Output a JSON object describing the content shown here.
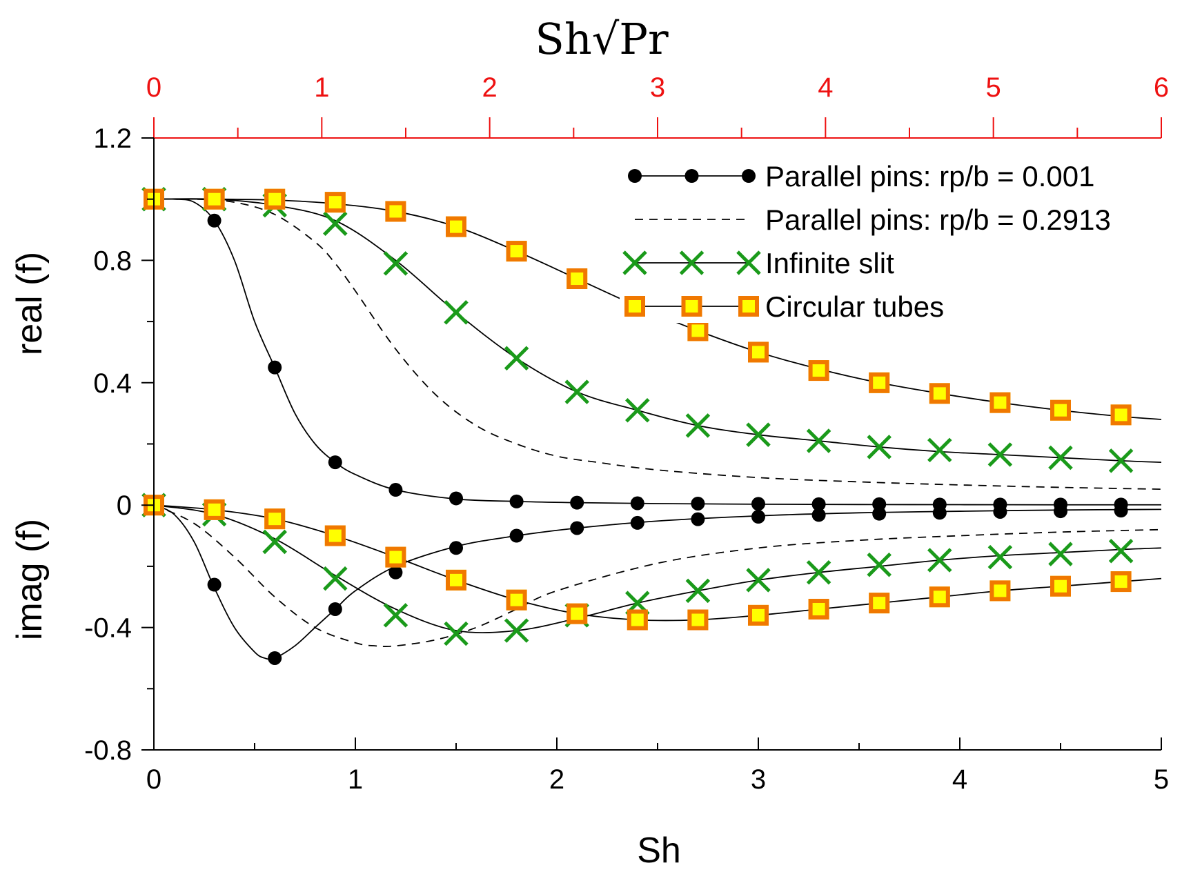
{
  "chart_data": {
    "type": "line",
    "x_axis": {
      "label": "Sh",
      "range": [
        0,
        5
      ],
      "ticks": [
        "0",
        "1",
        "2",
        "3",
        "4",
        "5"
      ]
    },
    "top_axis": {
      "label": "Sh√Pr",
      "range": [
        0,
        6
      ],
      "ticks": [
        "0",
        "1",
        "2",
        "3",
        "4",
        "5",
        "6"
      ],
      "color": "#ee1111"
    },
    "y_axis": {
      "range": [
        -0.8,
        1.2
      ],
      "ticks": [
        "-0.8",
        "-0.4",
        "0",
        "0.4",
        "0.8",
        "1.2"
      ]
    },
    "y_labels": {
      "upper": "real (f)",
      "lower": "imag (f)"
    },
    "legend_position": "top-right",
    "grid": false,
    "series": [
      {
        "name": "Parallel pins:  rp/b = 0.001",
        "style": "solid-dots",
        "color": "#000000",
        "real": {
          "x": [
            0,
            0.1,
            0.2,
            0.3,
            0.4,
            0.5,
            0.6,
            0.7,
            0.8,
            0.9,
            1.0,
            1.2,
            1.5,
            1.8,
            2.1,
            2.5,
            3,
            3.5,
            4,
            4.5,
            5
          ],
          "y": [
            1.0,
            1.0,
            0.99,
            0.93,
            0.8,
            0.6,
            0.45,
            0.3,
            0.2,
            0.14,
            0.1,
            0.05,
            0.02,
            0.012,
            0.008,
            0.005,
            0.003,
            0.002,
            0.0015,
            0.001,
            0.001
          ]
        },
        "imag": {
          "x": [
            0,
            0.1,
            0.2,
            0.3,
            0.4,
            0.5,
            0.55,
            0.6,
            0.7,
            0.8,
            0.9,
            1.0,
            1.2,
            1.5,
            1.8,
            2.1,
            2.5,
            3,
            3.5,
            4,
            4.5,
            5
          ],
          "y": [
            0,
            -0.03,
            -0.12,
            -0.27,
            -0.4,
            -0.48,
            -0.5,
            -0.5,
            -0.46,
            -0.4,
            -0.34,
            -0.28,
            -0.2,
            -0.135,
            -0.1,
            -0.075,
            -0.052,
            -0.035,
            -0.025,
            -0.02,
            -0.016,
            -0.014
          ]
        },
        "markers_real": {
          "x": [
            0,
            0.3,
            0.6,
            0.9,
            1.2,
            1.5,
            1.8,
            2.1,
            2.4,
            2.7,
            3.0,
            3.3,
            3.6,
            3.9,
            4.2,
            4.5,
            4.8
          ],
          "y": [
            1.0,
            0.93,
            0.45,
            0.14,
            0.05,
            0.022,
            0.012,
            0.008,
            0.006,
            0.005,
            0.004,
            0.003,
            0.003,
            0.002,
            0.002,
            0.002,
            0.002
          ]
        },
        "markers_imag": {
          "x": [
            0,
            0.3,
            0.6,
            0.9,
            1.2,
            1.5,
            1.8,
            2.1,
            2.4,
            2.7,
            3.0,
            3.3,
            3.6,
            3.9,
            4.2,
            4.5,
            4.8
          ],
          "y": [
            0,
            -0.26,
            -0.5,
            -0.34,
            -0.22,
            -0.14,
            -0.1,
            -0.075,
            -0.058,
            -0.046,
            -0.038,
            -0.032,
            -0.028,
            -0.025,
            -0.022,
            -0.02,
            -0.018
          ]
        }
      },
      {
        "name": "Parallel pins:  rp/b = 0.2913",
        "style": "dashed",
        "color": "#000000",
        "real": {
          "x": [
            0,
            0.2,
            0.4,
            0.6,
            0.8,
            0.9,
            1.0,
            1.2,
            1.4,
            1.6,
            1.8,
            2.0,
            2.2,
            2.5,
            3.0,
            3.5,
            4.0,
            4.5,
            5.0
          ],
          "y": [
            1.0,
            1.0,
            0.99,
            0.95,
            0.86,
            0.79,
            0.7,
            0.51,
            0.36,
            0.26,
            0.2,
            0.16,
            0.14,
            0.115,
            0.09,
            0.076,
            0.066,
            0.058,
            0.052
          ]
        },
        "imag": {
          "x": [
            0,
            0.2,
            0.4,
            0.6,
            0.8,
            1.0,
            1.1,
            1.2,
            1.4,
            1.6,
            1.8,
            2.0,
            2.5,
            3.0,
            3.5,
            4.0,
            4.5,
            5.0
          ],
          "y": [
            0,
            -0.06,
            -0.17,
            -0.3,
            -0.4,
            -0.45,
            -0.46,
            -0.46,
            -0.44,
            -0.4,
            -0.34,
            -0.28,
            -0.19,
            -0.14,
            -0.115,
            -0.1,
            -0.088,
            -0.08
          ]
        }
      },
      {
        "name": "Infinite slit",
        "style": "solid-x",
        "color": "#1a9a1a",
        "real": {
          "x": [
            0,
            0.3,
            0.6,
            0.9,
            1.2,
            1.5,
            1.8,
            2.1,
            2.4,
            2.7,
            3.0,
            3.3,
            3.6,
            3.9,
            4.2,
            4.5,
            4.8,
            5.0
          ],
          "y": [
            1.0,
            1.0,
            0.98,
            0.93,
            0.8,
            0.63,
            0.48,
            0.37,
            0.31,
            0.26,
            0.23,
            0.21,
            0.19,
            0.175,
            0.165,
            0.155,
            0.145,
            0.14
          ]
        },
        "imag": {
          "x": [
            0,
            0.3,
            0.6,
            0.9,
            1.2,
            1.5,
            1.8,
            2.1,
            2.4,
            2.7,
            3.0,
            3.3,
            3.6,
            3.9,
            4.2,
            4.5,
            4.8,
            5.0
          ],
          "y": [
            0,
            -0.03,
            -0.11,
            -0.23,
            -0.34,
            -0.41,
            -0.41,
            -0.37,
            -0.32,
            -0.28,
            -0.245,
            -0.22,
            -0.2,
            -0.18,
            -0.165,
            -0.155,
            -0.145,
            -0.14
          ]
        },
        "markers_real": {
          "x": [
            0,
            0.3,
            0.6,
            0.9,
            1.2,
            1.5,
            1.8,
            2.1,
            2.4,
            2.7,
            3.0,
            3.3,
            3.6,
            3.9,
            4.2,
            4.5,
            4.8
          ],
          "y": [
            1.0,
            1.0,
            0.98,
            0.92,
            0.79,
            0.63,
            0.48,
            0.37,
            0.31,
            0.26,
            0.23,
            0.21,
            0.19,
            0.18,
            0.165,
            0.155,
            0.145
          ]
        },
        "markers_imag": {
          "x": [
            0,
            0.3,
            0.6,
            0.9,
            1.2,
            1.5,
            1.8,
            2.1,
            2.4,
            2.7,
            3.0,
            3.3,
            3.6,
            3.9,
            4.2,
            4.5,
            4.8
          ],
          "y": [
            0,
            -0.03,
            -0.12,
            -0.24,
            -0.36,
            -0.42,
            -0.41,
            -0.36,
            -0.32,
            -0.28,
            -0.245,
            -0.22,
            -0.195,
            -0.18,
            -0.17,
            -0.16,
            -0.15
          ]
        }
      },
      {
        "name": "Circular tubes",
        "style": "solid-square",
        "color": "#f07800",
        "real": {
          "x": [
            0,
            0.3,
            0.6,
            0.9,
            1.2,
            1.5,
            1.8,
            2.1,
            2.4,
            2.7,
            3.0,
            3.3,
            3.6,
            3.9,
            4.2,
            4.5,
            4.8,
            5.0
          ],
          "y": [
            1.0,
            1.0,
            0.997,
            0.985,
            0.96,
            0.91,
            0.83,
            0.74,
            0.65,
            0.57,
            0.5,
            0.445,
            0.4,
            0.365,
            0.335,
            0.31,
            0.29,
            0.28
          ]
        },
        "imag": {
          "x": [
            0,
            0.3,
            0.6,
            0.9,
            1.2,
            1.5,
            1.8,
            2.1,
            2.4,
            2.7,
            3.0,
            3.3,
            3.6,
            3.9,
            4.2,
            4.5,
            4.8,
            5.0
          ],
          "y": [
            0,
            -0.015,
            -0.045,
            -0.1,
            -0.17,
            -0.245,
            -0.31,
            -0.355,
            -0.375,
            -0.375,
            -0.36,
            -0.34,
            -0.32,
            -0.3,
            -0.28,
            -0.265,
            -0.25,
            -0.24
          ]
        },
        "markers_real": {
          "x": [
            0,
            0.3,
            0.6,
            0.9,
            1.2,
            1.5,
            1.8,
            2.1,
            2.4,
            2.7,
            3.0,
            3.3,
            3.6,
            3.9,
            4.2,
            4.5,
            4.8
          ],
          "y": [
            1.0,
            1.0,
            1.0,
            0.99,
            0.96,
            0.91,
            0.83,
            0.74,
            0.65,
            0.57,
            0.5,
            0.44,
            0.4,
            0.365,
            0.335,
            0.31,
            0.295
          ]
        },
        "markers_imag": {
          "x": [
            0,
            0.3,
            0.6,
            0.9,
            1.2,
            1.5,
            1.8,
            2.1,
            2.4,
            2.7,
            3.0,
            3.3,
            3.6,
            3.9,
            4.2,
            4.5,
            4.8
          ],
          "y": [
            0,
            -0.015,
            -0.045,
            -0.1,
            -0.17,
            -0.245,
            -0.31,
            -0.355,
            -0.375,
            -0.375,
            -0.36,
            -0.34,
            -0.32,
            -0.3,
            -0.28,
            -0.265,
            -0.25
          ]
        }
      }
    ]
  }
}
